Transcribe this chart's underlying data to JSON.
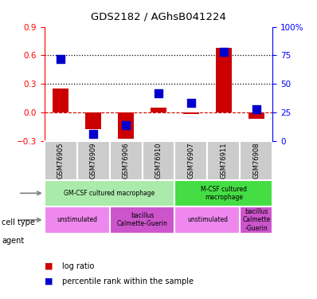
{
  "title": "GDS2182 / AGhsB041224",
  "samples": [
    "GSM76905",
    "GSM76909",
    "GSM76906",
    "GSM76910",
    "GSM76907",
    "GSM76911",
    "GSM76908"
  ],
  "log_ratio": [
    0.25,
    -0.18,
    -0.28,
    0.05,
    -0.02,
    0.68,
    -0.07
  ],
  "percentile_rank": [
    72,
    6,
    14,
    42,
    33,
    78,
    28
  ],
  "ylim_left": [
    -0.3,
    0.9
  ],
  "ylim_right": [
    0,
    100
  ],
  "yticks_left": [
    -0.3,
    0,
    0.3,
    0.6,
    0.9
  ],
  "yticks_right": [
    0,
    25,
    50,
    75,
    100
  ],
  "ytick_labels_right": [
    "0",
    "25",
    "50",
    "75",
    "100%"
  ],
  "hlines": [
    0.3,
    0.6
  ],
  "bar_color": "#cc0000",
  "dot_color": "#0000cc",
  "cell_type_groups": [
    {
      "label": "GM-CSF cultured macrophage",
      "start": 0,
      "end": 4,
      "color": "#aaeaaa"
    },
    {
      "label": "M-CSF cultured\nmacrophage",
      "start": 4,
      "end": 7,
      "color": "#44dd44"
    }
  ],
  "agent_groups": [
    {
      "label": "unstimulated",
      "start": 0,
      "end": 2,
      "color": "#ee88ee"
    },
    {
      "label": "bacillus\nCalmette-Guerin",
      "start": 2,
      "end": 4,
      "color": "#cc55cc"
    },
    {
      "label": "unstimulated",
      "start": 4,
      "end": 6,
      "color": "#ee88ee"
    },
    {
      "label": "bacillus\nCalmette\n-Guerin",
      "start": 6,
      "end": 7,
      "color": "#cc55cc"
    }
  ],
  "cell_type_label": "cell type",
  "agent_label": "agent",
  "legend_bar": "log ratio",
  "legend_dot": "percentile rank within the sample",
  "zero_line_color": "#cc0000",
  "bar_width": 0.5,
  "dot_size": 55
}
